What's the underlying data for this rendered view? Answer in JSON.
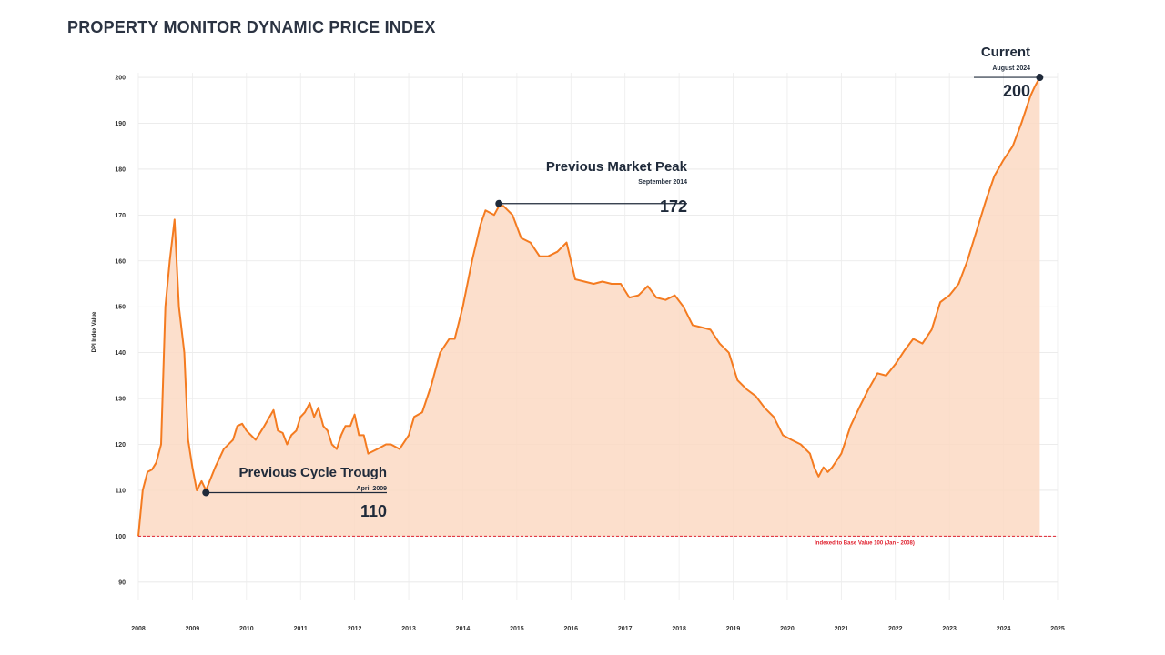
{
  "title": "PROPERTY MONITOR DYNAMIC PRICE INDEX",
  "chart_data": {
    "type": "area",
    "ylabel": "DPI Index Value",
    "xlabel": "",
    "ylim": [
      86,
      201
    ],
    "xlim": [
      2008,
      2025
    ],
    "y_ticks": [
      90,
      100,
      110,
      120,
      130,
      140,
      150,
      160,
      170,
      180,
      190,
      200
    ],
    "x_ticks": [
      2008,
      2009,
      2010,
      2011,
      2012,
      2013,
      2014,
      2015,
      2016,
      2017,
      2018,
      2019,
      2020,
      2021,
      2022,
      2023,
      2024,
      2025
    ],
    "grid": true,
    "colors": {
      "line": "#f47b20",
      "fill": "#fcd9c3",
      "baseline": "#e0222f",
      "annotation": "#1f2a3a"
    },
    "baseline": {
      "value": 100,
      "label": "Indexed to Base Value 100 (Jan - 2008)"
    },
    "series": [
      {
        "x": [
          2008.0,
          2008.08,
          2008.17,
          2008.25,
          2008.33,
          2008.42,
          2008.5,
          2008.58,
          2008.67,
          2008.75,
          2008.85,
          2008.92,
          2009.0,
          2009.08,
          2009.17,
          2009.25,
          2009.42,
          2009.58,
          2009.75,
          2009.83,
          2009.92,
          2010.0,
          2010.17,
          2010.33,
          2010.5,
          2010.58,
          2010.67,
          2010.75,
          2010.83,
          2010.92,
          2011.0,
          2011.08,
          2011.17,
          2011.25,
          2011.33,
          2011.42,
          2011.5,
          2011.58,
          2011.67,
          2011.75,
          2011.83,
          2011.92,
          2012.0,
          2012.08,
          2012.17,
          2012.25,
          2012.42,
          2012.58,
          2012.67,
          2012.83,
          2013.0,
          2013.1,
          2013.25,
          2013.42,
          2013.58,
          2013.75,
          2013.85,
          2014.0,
          2014.17,
          2014.33,
          2014.42,
          2014.5,
          2014.58,
          2014.67,
          2014.75,
          2014.92,
          2015.08,
          2015.25,
          2015.42,
          2015.58,
          2015.75,
          2015.92,
          2016.08,
          2016.25,
          2016.42,
          2016.58,
          2016.75,
          2016.92,
          2017.08,
          2017.25,
          2017.42,
          2017.58,
          2017.75,
          2017.92,
          2018.08,
          2018.25,
          2018.42,
          2018.58,
          2018.75,
          2018.92,
          2019.08,
          2019.25,
          2019.42,
          2019.58,
          2019.75,
          2019.92,
          2020.08,
          2020.25,
          2020.42,
          2020.5,
          2020.58,
          2020.67,
          2020.75,
          2020.83,
          2021.0,
          2021.17,
          2021.33,
          2021.5,
          2021.67,
          2021.83,
          2022.0,
          2022.17,
          2022.33,
          2022.5,
          2022.67,
          2022.83,
          2023.0,
          2023.17,
          2023.33,
          2023.5,
          2023.67,
          2023.83,
          2024.0,
          2024.17,
          2024.33,
          2024.5,
          2024.58,
          2024.67
        ],
        "values": [
          100,
          110,
          114,
          114.5,
          116,
          120,
          150,
          160,
          169,
          150,
          140,
          121,
          115,
          110,
          112,
          110,
          115,
          119,
          121,
          124,
          124.5,
          123,
          121,
          124,
          127.5,
          123,
          122.5,
          120,
          122,
          123,
          126,
          127,
          129,
          126,
          128,
          124,
          123,
          120,
          119,
          122,
          124,
          124,
          126.5,
          122,
          122,
          118,
          119,
          120,
          120,
          119,
          122,
          126,
          127,
          133,
          140,
          143,
          143,
          150,
          160,
          168,
          171,
          170.5,
          170,
          172,
          172,
          170,
          165,
          164,
          161,
          161,
          162,
          164,
          156,
          155.5,
          155,
          155.5,
          155,
          155,
          152,
          152.5,
          154.5,
          152,
          151.5,
          152.5,
          150,
          146,
          145.5,
          145,
          142,
          140,
          134,
          132,
          130.5,
          128,
          126,
          122,
          121,
          120,
          118,
          115,
          113,
          115,
          114,
          115,
          118,
          124,
          128,
          132,
          135.5,
          135,
          137.5,
          140.5,
          143,
          142,
          145,
          151,
          152.5,
          155,
          160,
          166.5,
          173,
          178.5,
          182,
          185,
          190,
          196,
          198,
          200
        ]
      }
    ],
    "annotations": [
      {
        "title": "Previous Cycle Trough",
        "subtitle": "April 2009",
        "value": "110",
        "x": 2009.25,
        "y": 109.5
      },
      {
        "title": "Previous Market Peak",
        "subtitle": "September 2014",
        "value": "172",
        "x": 2014.67,
        "y": 172.5
      },
      {
        "title": "Current",
        "subtitle": "August 2024",
        "value": "200",
        "x": 2024.67,
        "y": 200
      }
    ]
  }
}
